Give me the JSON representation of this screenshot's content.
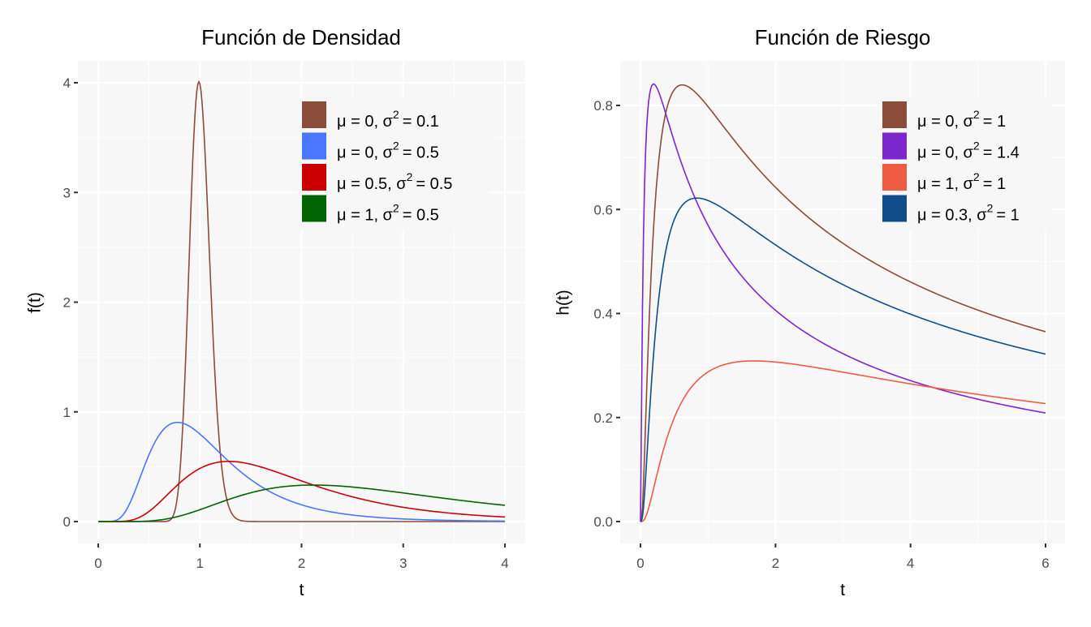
{
  "chart_data": [
    {
      "type": "line",
      "title": "Función de Densidad",
      "xlabel": "t",
      "ylabel": "f(t)",
      "xlim": [
        0,
        4
      ],
      "ylim": [
        0,
        4
      ],
      "xticks": [
        "0",
        "1",
        "2",
        "3",
        "4"
      ],
      "yticks": [
        "0",
        "1",
        "2",
        "3",
        "4"
      ],
      "grid": true,
      "legend_position": "top-right",
      "function": "lognormal density",
      "series": [
        {
          "name": "μ = 0, σ² = 0.1",
          "mu_label": "μ = 0, σ",
          "sigma_label": "= 0.1",
          "meanlog": 0,
          "sdlog": 0.1,
          "color": "#8B4C39"
        },
        {
          "name": "μ = 0, σ² = 0.5",
          "mu_label": "μ = 0, σ",
          "sigma_label": "= 0.5",
          "meanlog": 0,
          "sdlog": 0.5,
          "color": "#4876FF"
        },
        {
          "name": "μ = 0.5, σ² = 0.5",
          "mu_label": "μ = 0.5, σ",
          "sigma_label": "= 0.5",
          "meanlog": 0.5,
          "sdlog": 0.5,
          "color": "#CD0000"
        },
        {
          "name": "μ = 1, σ² = 0.5",
          "mu_label": "μ = 1, σ",
          "sigma_label": "= 0.5",
          "meanlog": 1,
          "sdlog": 0.5,
          "color": "#006400"
        }
      ]
    },
    {
      "type": "line",
      "title": "Función de Riesgo",
      "xlabel": "t",
      "ylabel": "h(t)",
      "xlim": [
        0,
        6
      ],
      "ylim": [
        0,
        0.84
      ],
      "xticks": [
        "0",
        "2",
        "4",
        "6"
      ],
      "yticks": [
        "0.0",
        "0.2",
        "0.4",
        "0.6",
        "0.8"
      ],
      "grid": true,
      "legend_position": "top-right",
      "function": "lognormal hazard",
      "series": [
        {
          "name": "μ = 0, σ² = 1",
          "mu_label": "μ = 0, σ",
          "sigma_label": "= 1",
          "meanlog": 0,
          "sdlog": 1,
          "color": "#8B4C39"
        },
        {
          "name": "μ = 0, σ² = 1.4",
          "mu_label": "μ = 0, σ",
          "sigma_label": "= 1.4",
          "meanlog": 0,
          "sdlog": 1.4,
          "color": "#7D26CD"
        },
        {
          "name": "μ = 1, σ² = 1",
          "mu_label": "μ = 1, σ",
          "sigma_label": "= 1",
          "meanlog": 1,
          "sdlog": 1,
          "color": "#EE5C42"
        },
        {
          "name": "μ = 0.3, σ² = 1",
          "mu_label": "μ = 0.3, σ",
          "sigma_label": "= 1",
          "meanlog": 0.3,
          "sdlog": 1,
          "color": "#104E8B"
        }
      ]
    }
  ]
}
